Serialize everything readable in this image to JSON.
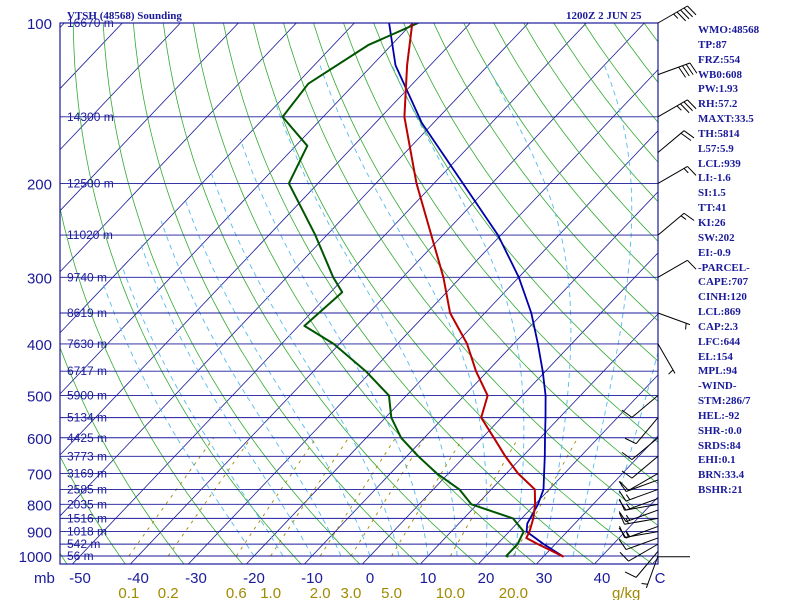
{
  "header": {
    "station": "VTSH (48568) Sounding",
    "time": "1200Z  2 JUN 25"
  },
  "units": {
    "pressure": "mb",
    "mixing_ratio": "g/kg"
  },
  "indices": [
    "WMO:48568",
    "TP:87",
    "FRZ:554",
    "WB0:608",
    "PW:1.93",
    "RH:57.2",
    "MAXT:33.5",
    "TH:5814",
    "L57:5.9",
    "LCL:939",
    "LI:-1.6",
    "SI:1.5",
    "TT:41",
    "KI:26",
    "SW:202",
    "EI:-0.9",
    "-PARCEL-",
    "CAPE:707",
    "CINH:120",
    "LCL:869",
    "CAP:2.3",
    "LFC:644",
    "EL:154",
    "MPL:94",
    "-WIND-",
    "STM:286/7",
    "HEL:-92",
    "SHR-:0.0",
    "SRDS:84",
    "EHI:0.1",
    "BRN:33.4",
    "BSHR:21"
  ],
  "colors": {
    "frame": "#1a1a9a",
    "isobar": "#1a1a9a",
    "isotherm": "#1a1a9a",
    "dry_adiabat": "#33aa33",
    "moist_adiabat": "#55bbee",
    "mixing_ratio": "#a08a00",
    "temperature": "#bb0000",
    "dewpoint": "#005500",
    "parcel": "#0000aa",
    "wind": "#000000"
  },
  "chart_data": {
    "type": "skew-t",
    "title": "VTSH (48568) Sounding",
    "pressure_axis": {
      "label": "mb",
      "ticks": [
        100,
        200,
        300,
        400,
        500,
        600,
        700,
        800,
        900,
        1000
      ],
      "range": [
        1000,
        100
      ],
      "scale": "log"
    },
    "temperature_axis": {
      "ticks": [
        -50,
        -40,
        -30,
        -20,
        -10,
        0,
        10,
        20,
        30,
        40
      ],
      "tick_labels": [
        "-50",
        "-40",
        "-30",
        "-20",
        "-10",
        "0",
        "10",
        "20",
        "30",
        "40",
        "C"
      ],
      "unit": "C"
    },
    "mixing_ratio_labels": [
      "0.1",
      "0.2",
      "0.6",
      "1.0",
      "2.0",
      "3.0",
      "5.0",
      "10.0",
      "20.0",
      "g/kg"
    ],
    "mixing_ratio_values": [
      0.1,
      0.2,
      0.6,
      1,
      2,
      3,
      5,
      10,
      20
    ],
    "height_labels": [
      {
        "p": 100,
        "label": "16670 m"
      },
      {
        "p": 150,
        "label": "14300 m"
      },
      {
        "p": 200,
        "label": "12500 m"
      },
      {
        "p": 250,
        "label": "11020 m"
      },
      {
        "p": 300,
        "label": "9740 m"
      },
      {
        "p": 350,
        "label": "8619 m"
      },
      {
        "p": 400,
        "label": "7630 m"
      },
      {
        "p": 450,
        "label": "6717 m"
      },
      {
        "p": 500,
        "label": "5900 m"
      },
      {
        "p": 550,
        "label": "5134 m"
      },
      {
        "p": 600,
        "label": "4425 m"
      },
      {
        "p": 650,
        "label": "3773 m"
      },
      {
        "p": 700,
        "label": "3169 m"
      },
      {
        "p": 750,
        "label": "2585 m"
      },
      {
        "p": 800,
        "label": "2035 m"
      },
      {
        "p": 850,
        "label": "1516 m"
      },
      {
        "p": 900,
        "label": "1018 m"
      },
      {
        "p": 950,
        "label": "542 m"
      },
      {
        "p": 1000,
        "label": "56 m"
      }
    ],
    "temperature": [
      {
        "p": 1003,
        "t": 33.5
      },
      {
        "p": 950,
        "t": 27
      },
      {
        "p": 925,
        "t": 24
      },
      {
        "p": 900,
        "t": 23.5
      },
      {
        "p": 850,
        "t": 22
      },
      {
        "p": 800,
        "t": 20
      },
      {
        "p": 750,
        "t": 17.5
      },
      {
        "p": 700,
        "t": 12
      },
      {
        "p": 650,
        "t": 7
      },
      {
        "p": 600,
        "t": 2
      },
      {
        "p": 550,
        "t": -3.5
      },
      {
        "p": 500,
        "t": -6
      },
      {
        "p": 450,
        "t": -12
      },
      {
        "p": 400,
        "t": -18
      },
      {
        "p": 350,
        "t": -26
      },
      {
        "p": 300,
        "t": -33
      },
      {
        "p": 250,
        "t": -42
      },
      {
        "p": 200,
        "t": -53
      },
      {
        "p": 150,
        "t": -66
      },
      {
        "p": 120,
        "t": -74
      },
      {
        "p": 100,
        "t": -80
      },
      {
        "p": 94,
        "t": -83
      },
      {
        "p": 90,
        "t": -80
      }
    ],
    "dewpoint": [
      {
        "p": 1003,
        "t": 24
      },
      {
        "p": 1000,
        "t": 23.5
      },
      {
        "p": 950,
        "t": 23.5
      },
      {
        "p": 900,
        "t": 22.5
      },
      {
        "p": 850,
        "t": 18.5
      },
      {
        "p": 800,
        "t": 9
      },
      {
        "p": 750,
        "t": 4.5
      },
      {
        "p": 700,
        "t": -2
      },
      {
        "p": 650,
        "t": -8
      },
      {
        "p": 600,
        "t": -14
      },
      {
        "p": 550,
        "t": -19
      },
      {
        "p": 500,
        "t": -23
      },
      {
        "p": 450,
        "t": -31
      },
      {
        "p": 400,
        "t": -41
      },
      {
        "p": 370,
        "t": -49
      },
      {
        "p": 320,
        "t": -48
      },
      {
        "p": 300,
        "t": -52
      },
      {
        "p": 250,
        "t": -62
      },
      {
        "p": 200,
        "t": -75
      },
      {
        "p": 170,
        "t": -78
      },
      {
        "p": 150,
        "t": -87
      },
      {
        "p": 130,
        "t": -88
      },
      {
        "p": 110,
        "t": -84
      },
      {
        "p": 100,
        "t": -79
      },
      {
        "p": 93,
        "t": -77
      }
    ],
    "parcel": [
      {
        "p": 1003,
        "t": 33.5
      },
      {
        "p": 950,
        "t": 28
      },
      {
        "p": 900,
        "t": 23
      },
      {
        "p": 869,
        "t": 21.8
      },
      {
        "p": 800,
        "t": 20.5
      },
      {
        "p": 750,
        "t": 19
      },
      {
        "p": 700,
        "t": 16.5
      },
      {
        "p": 650,
        "t": 13.8
      },
      {
        "p": 600,
        "t": 10.8
      },
      {
        "p": 550,
        "t": 7.6
      },
      {
        "p": 500,
        "t": 4
      },
      {
        "p": 450,
        "t": -0.5
      },
      {
        "p": 400,
        "t": -5.8
      },
      {
        "p": 350,
        "t": -12
      },
      {
        "p": 300,
        "t": -20
      },
      {
        "p": 250,
        "t": -30.5
      },
      {
        "p": 200,
        "t": -45
      },
      {
        "p": 154,
        "t": -62
      },
      {
        "p": 120,
        "t": -76
      },
      {
        "p": 100,
        "t": -84
      },
      {
        "p": 94,
        "t": -87
      }
    ],
    "wind_barbs": [
      {
        "p": 1000,
        "dir": 200,
        "spd": 5
      },
      {
        "p": 980,
        "dir": 220,
        "spd": 10
      },
      {
        "p": 950,
        "dir": 240,
        "spd": 10
      },
      {
        "p": 925,
        "dir": 250,
        "spd": 10
      },
      {
        "p": 900,
        "dir": 260,
        "spd": 15
      },
      {
        "p": 880,
        "dir": 250,
        "spd": 15
      },
      {
        "p": 850,
        "dir": 260,
        "spd": 15
      },
      {
        "p": 820,
        "dir": 250,
        "spd": 15
      },
      {
        "p": 800,
        "dir": 260,
        "spd": 10
      },
      {
        "p": 780,
        "dir": 250,
        "spd": 15
      },
      {
        "p": 750,
        "dir": 250,
        "spd": 15
      },
      {
        "p": 720,
        "dir": 250,
        "spd": 10
      },
      {
        "p": 700,
        "dir": 240,
        "spd": 10
      },
      {
        "p": 650,
        "dir": 230,
        "spd": 10
      },
      {
        "p": 600,
        "dir": 230,
        "spd": 10
      },
      {
        "p": 550,
        "dir": 220,
        "spd": 10
      },
      {
        "p": 500,
        "dir": 230,
        "spd": 10
      },
      {
        "p": 400,
        "dir": 150,
        "spd": 5
      },
      {
        "p": 350,
        "dir": 110,
        "spd": 5
      },
      {
        "p": 300,
        "dir": 60,
        "spd": 10
      },
      {
        "p": 250,
        "dir": 50,
        "spd": 15
      },
      {
        "p": 200,
        "dir": 60,
        "spd": 15
      },
      {
        "p": 175,
        "dir": 50,
        "spd": 20
      },
      {
        "p": 150,
        "dir": 60,
        "spd": 35
      },
      {
        "p": 125,
        "dir": 70,
        "spd": 40
      },
      {
        "p": 100,
        "dir": 60,
        "spd": 45
      },
      {
        "p": 90,
        "dir": 60,
        "spd": 40
      }
    ]
  }
}
